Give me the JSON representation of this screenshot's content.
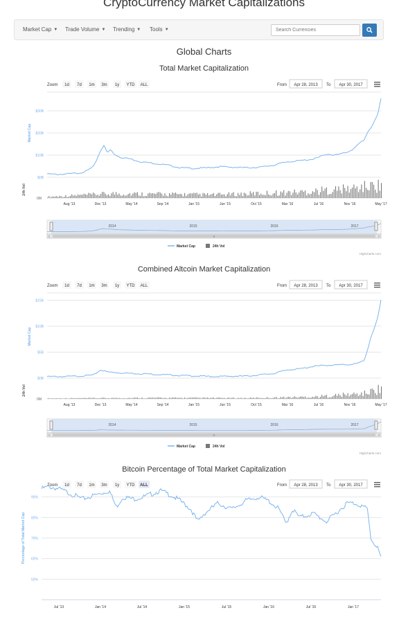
{
  "site": {
    "title": "CryptoCurrency Market Capitalizations"
  },
  "nav": {
    "items": [
      {
        "label": "Market Cap"
      },
      {
        "label": "Trade Volume"
      },
      {
        "label": "Trending"
      },
      {
        "label": "Tools"
      }
    ],
    "search_placeholder": "Search Currencies",
    "search_icon": "search-icon"
  },
  "section_title": "Global Charts",
  "controls": {
    "zoom_label": "Zoom",
    "zoom_buttons": [
      "1d",
      "7d",
      "1m",
      "3m",
      "1y",
      "YTD",
      "ALL"
    ],
    "from_label": "From",
    "to_label": "To",
    "from_date": "Apr 28, 2013",
    "to_date": "Apr 30, 2017",
    "menu_icon": "hamburger-menu-icon"
  },
  "colors": {
    "line": "#7cb5ec",
    "volume": "#777777",
    "navigator_fill": "#cfe0f5",
    "accent": "#337ab7"
  },
  "credits": "Highcharts.com",
  "chart_data": [
    {
      "type": "line",
      "title": "Total Market Capitalization",
      "ylabel": "Market Cap",
      "ylabel2": "24h Vol",
      "ylim": [
        0,
        40
      ],
      "yticks": [
        "$30B",
        "$20B",
        "$10B",
        "$0B"
      ],
      "ytick_values": [
        30,
        20,
        10,
        0
      ],
      "vol_tick": "0M",
      "xticks": [
        "Aug '13",
        "Dec '13",
        "May '14",
        "Sep '14",
        "Jan '15",
        "Jun '15",
        "Oct '15",
        "Mar '16",
        "Jul '16",
        "Nov '16",
        "May '17"
      ],
      "navigator_years": [
        "2014",
        "2015",
        "2016",
        "2017"
      ],
      "legend": [
        "Market Cap",
        "24h Vol"
      ],
      "series": [
        {
          "name": "Market Cap",
          "x": [
            0,
            0.03,
            0.07,
            0.1,
            0.12,
            0.14,
            0.16,
            0.17,
            0.18,
            0.19,
            0.2,
            0.22,
            0.25,
            0.28,
            0.32,
            0.36,
            0.4,
            0.44,
            0.48,
            0.52,
            0.56,
            0.6,
            0.64,
            0.68,
            0.7,
            0.72,
            0.76,
            0.8,
            0.84,
            0.86,
            0.88,
            0.9,
            0.92,
            0.94,
            0.95,
            0.96,
            0.97,
            0.98,
            0.99,
            1.0
          ],
          "values": [
            1.5,
            1.3,
            1.6,
            2.0,
            3.0,
            5.0,
            12.0,
            14.5,
            11.0,
            12.5,
            10.5,
            9.0,
            8.3,
            7.0,
            6.3,
            5.5,
            4.3,
            4.0,
            4.3,
            4.8,
            4.5,
            4.3,
            4.6,
            5.5,
            6.3,
            7.0,
            7.5,
            8.3,
            10.5,
            10.0,
            10.5,
            11.5,
            13.0,
            16.0,
            17.0,
            20.5,
            22.5,
            25.0,
            28.0,
            35.5
          ]
        },
        {
          "name": "24h Vol",
          "x": [
            0.0,
            0.2,
            0.5,
            0.75,
            0.9,
            1.0
          ],
          "values": [
            0.1,
            0.35,
            0.25,
            0.45,
            0.7,
            1.0
          ]
        }
      ]
    },
    {
      "type": "line",
      "title": "Combined Altcoin Market Capitalization",
      "ylabel": "Market Cap",
      "ylabel2": "24h Vol",
      "ylim": [
        0,
        16
      ],
      "yticks": [
        "$15B",
        "$10B",
        "$5B",
        "$0B"
      ],
      "ytick_values": [
        15,
        10,
        5,
        0
      ],
      "vol_tick": "0M",
      "xticks": [
        "Aug '13",
        "Dec '13",
        "May '14",
        "Sep '14",
        "Jan '15",
        "Jun '15",
        "Oct '15",
        "Mar '16",
        "Jul '16",
        "Nov '16",
        "May '17"
      ],
      "navigator_years": [
        "2014",
        "2015",
        "2016",
        "2017"
      ],
      "legend": [
        "Market Cap",
        "24h Vol"
      ],
      "series": [
        {
          "name": "Market Cap",
          "x": [
            0,
            0.05,
            0.1,
            0.14,
            0.16,
            0.18,
            0.22,
            0.3,
            0.4,
            0.5,
            0.6,
            0.68,
            0.72,
            0.76,
            0.8,
            0.85,
            0.9,
            0.93,
            0.95,
            0.96,
            0.97,
            0.98,
            0.99,
            1.0
          ],
          "values": [
            0.3,
            0.3,
            0.4,
            0.6,
            1.6,
            1.2,
            1.0,
            0.8,
            0.5,
            0.3,
            0.4,
            0.9,
            1.6,
            1.8,
            2.3,
            2.5,
            2.6,
            2.8,
            3.5,
            5.5,
            8.0,
            9.5,
            11.5,
            15.0
          ]
        },
        {
          "name": "24h Vol",
          "x": [
            0.0,
            0.3,
            0.6,
            0.8,
            0.95,
            1.0
          ],
          "values": [
            0.05,
            0.1,
            0.08,
            0.2,
            0.5,
            1.0
          ]
        }
      ]
    },
    {
      "type": "line",
      "title": "Bitcoin Percentage of Total Market Capitalization",
      "ylabel": "Percentage of Total Market Cap",
      "ylim": [
        40,
        100
      ],
      "yticks": [
        "90%",
        "80%",
        "70%",
        "60%",
        "50%"
      ],
      "ytick_values": [
        90,
        80,
        70,
        60,
        50
      ],
      "xticks": [
        "Jul '13",
        "Jan '14",
        "Jul '14",
        "Jan '15",
        "Jul '15",
        "Jan '16",
        "Jul '16",
        "Jan '17"
      ],
      "series": [
        {
          "name": "Bitcoin Percentage of Total Market Capitalization",
          "x": [
            0,
            0.02,
            0.05,
            0.08,
            0.12,
            0.16,
            0.2,
            0.22,
            0.24,
            0.27,
            0.3,
            0.35,
            0.38,
            0.41,
            0.44,
            0.46,
            0.48,
            0.52,
            0.56,
            0.6,
            0.64,
            0.67,
            0.7,
            0.72,
            0.74,
            0.76,
            0.8,
            0.84,
            0.88,
            0.9,
            0.92,
            0.94,
            0.96,
            0.97,
            0.98,
            0.99,
            1.0
          ],
          "values": [
            94,
            95,
            94,
            92,
            89,
            91,
            93,
            85,
            90,
            89,
            90,
            93,
            91,
            88,
            84,
            78,
            82,
            87,
            84,
            88,
            90,
            88,
            84,
            77,
            84,
            80,
            82,
            78,
            84,
            87,
            87,
            86,
            84,
            70,
            67,
            66,
            60
          ]
        }
      ]
    }
  ]
}
